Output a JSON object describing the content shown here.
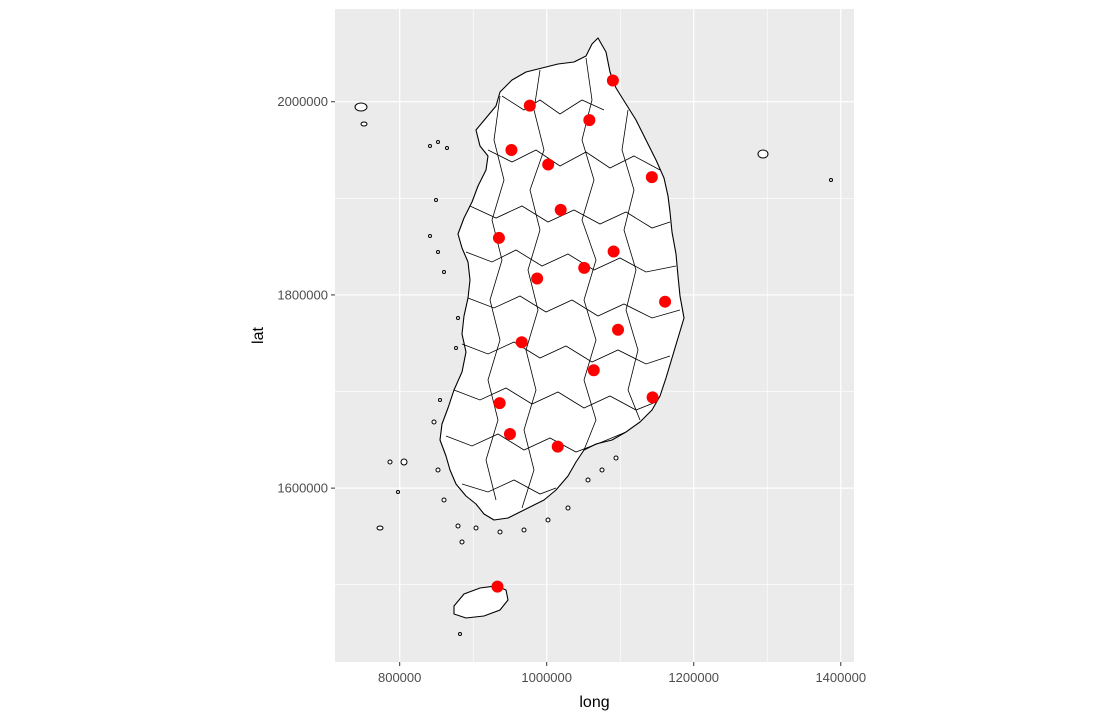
{
  "chart_data": {
    "type": "scatter",
    "geoms": [
      "polygon",
      "point"
    ],
    "xlabel": "long",
    "ylabel": "lat",
    "x_ticks": [
      {
        "value": 800000,
        "label": "800000"
      },
      {
        "value": 1000000,
        "label": "1000000"
      },
      {
        "value": 1200000,
        "label": "1200000"
      },
      {
        "value": 1400000,
        "label": "1400000"
      }
    ],
    "y_ticks": [
      {
        "value": 1600000,
        "label": "1600000"
      },
      {
        "value": 1800000,
        "label": "1800000"
      },
      {
        "value": 2000000,
        "label": "2000000"
      }
    ],
    "xlim": [
      712000,
      1418000
    ],
    "ylim": [
      1420000,
      2096000
    ],
    "grid": true,
    "legend": "none",
    "background_color": "#ebebeb",
    "grid_color": "#ffffff",
    "region_fill": "#ffffff",
    "region_stroke": "#000000",
    "point_color": "#ff0000",
    "points": [
      {
        "x": 1090000,
        "y": 2022000
      },
      {
        "x": 977000,
        "y": 1996000
      },
      {
        "x": 1058000,
        "y": 1981000
      },
      {
        "x": 952000,
        "y": 1950000
      },
      {
        "x": 1002000,
        "y": 1935000
      },
      {
        "x": 1143000,
        "y": 1922000
      },
      {
        "x": 1019000,
        "y": 1888000
      },
      {
        "x": 935000,
        "y": 1859000
      },
      {
        "x": 1091000,
        "y": 1845000
      },
      {
        "x": 1051000,
        "y": 1828000
      },
      {
        "x": 987000,
        "y": 1817000
      },
      {
        "x": 1161000,
        "y": 1793000
      },
      {
        "x": 1097000,
        "y": 1764000
      },
      {
        "x": 966000,
        "y": 1751000
      },
      {
        "x": 1064000,
        "y": 1722000
      },
      {
        "x": 1144000,
        "y": 1694000
      },
      {
        "x": 936000,
        "y": 1688000
      },
      {
        "x": 950000,
        "y": 1656000
      },
      {
        "x": 1015000,
        "y": 1643000
      },
      {
        "x": 933000,
        "y": 1498000
      }
    ]
  }
}
